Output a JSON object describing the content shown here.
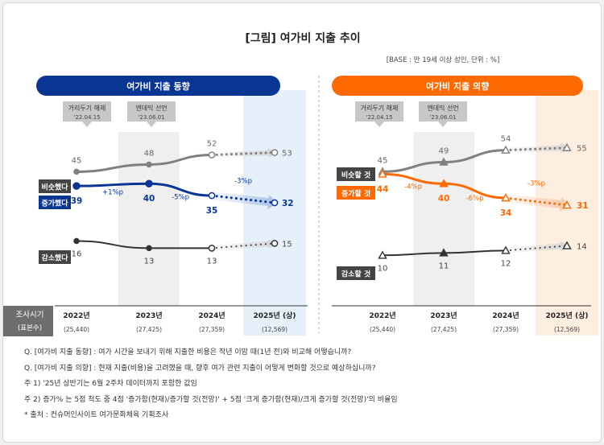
{
  "title": "[그림] 여가비 지출 추이",
  "base_note": "[BASE : 만 19세 이상 성인, 단위 : %]",
  "row_header": {
    "label": "조사시기",
    "sublabel": "(표본수)"
  },
  "periods": [
    {
      "label": "2022년",
      "n": "(25,440)"
    },
    {
      "label": "2023년",
      "n": "(27,425)"
    },
    {
      "label": "2024년",
      "n": "(27,359)"
    },
    {
      "label": "2025년 (상)",
      "n": "(12,569)"
    }
  ],
  "events": [
    {
      "label": "거리두기 해제",
      "date": "'22.04.15"
    },
    {
      "label": "엔데믹 선언",
      "date": "'23.06.01"
    }
  ],
  "colors": {
    "navy": "#0a3693",
    "orange": "#ff6a00",
    "gray": "#808080",
    "dark": "#333333",
    "band": "#efefef",
    "blue_band": "#e6f0fb",
    "orange_band": "#fdeee0"
  },
  "chart_data": [
    {
      "type": "line",
      "title": "여가비 지출 동향",
      "categories": [
        "2022년",
        "2023년",
        "2024년",
        "2025년 (상)"
      ],
      "series": [
        {
          "name": "비슷했다",
          "values": [
            45,
            48,
            52,
            53
          ]
        },
        {
          "name": "증가했다",
          "values": [
            39,
            40,
            35,
            32
          ]
        },
        {
          "name": "감소했다",
          "values": [
            16,
            13,
            13,
            15
          ]
        }
      ],
      "annotations": [
        "+1%p",
        "-5%p",
        "-3%p"
      ],
      "projected_from_index": 2,
      "marker": "circle"
    },
    {
      "type": "line",
      "title": "여가비 지출 의향",
      "categories": [
        "2022년",
        "2023년",
        "2024년",
        "2025년 (상)"
      ],
      "series": [
        {
          "name": "비슷할 것",
          "values": [
            45,
            49,
            54,
            55
          ]
        },
        {
          "name": "증가할 것",
          "values": [
            44,
            40,
            34,
            31
          ]
        },
        {
          "name": "감소할 것",
          "values": [
            10,
            11,
            12,
            14
          ]
        }
      ],
      "annotations": [
        "-4%p",
        "-6%p",
        "-3%p"
      ],
      "projected_from_index": 2,
      "marker": "triangle"
    }
  ],
  "notes": [
    "Q. [여가비 지출 동향] : 여가 시간을 보내기 위해 지출한 비용은 작년 이맘 때(1년 전)와 비교해 어떻습니까?",
    "Q. [여가비 지출 의향] : 현재 지출(비용)을 고려했을 때, 향후 여가 관련 지출이 어떻게 변화할 것으로 예상하십니까?",
    "주 1) '25년 상반기는 6월 2주차 데이터까지 포함한 값임",
    "주 2) 증가% 는 5점 척도 중 4점 '증가함(현재)/증가할 것(전망)' + 5점 '크게 증가함(현재)/크게 증가할 것(전망)'의 비율임",
    "* 출처 : 컨슈머인사이트 여가문화체육 기획조사"
  ]
}
